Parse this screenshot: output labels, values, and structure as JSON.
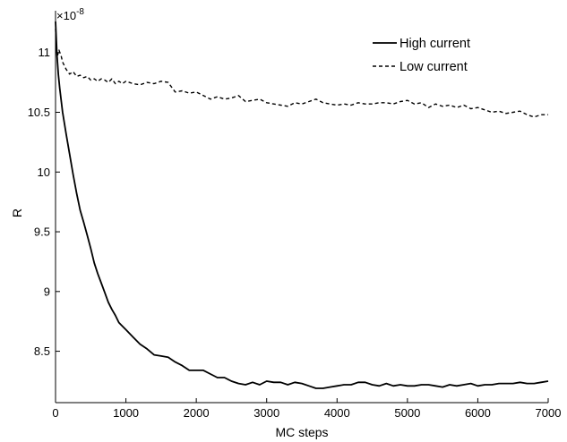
{
  "chart_data": {
    "type": "line",
    "title": "",
    "xlabel": "MC steps",
    "ylabel": "R",
    "y_multiplier": "×10",
    "y_exponent": "-8",
    "xlim": [
      0,
      7000
    ],
    "ylim": [
      8.07,
      11.35
    ],
    "x_ticks": [
      0,
      1000,
      2000,
      3000,
      4000,
      5000,
      6000,
      7000
    ],
    "y_ticks": [
      8.5,
      9,
      9.5,
      10,
      10.5,
      11
    ],
    "y_tick_labels": [
      "8.5",
      "9",
      "9.5",
      "10",
      "10.5",
      "11"
    ],
    "grid": false,
    "legend_position": "top-right",
    "series": [
      {
        "name": "High current",
        "line_style": "solid",
        "color": "#000000",
        "x": [
          0,
          20,
          40,
          60,
          80,
          100,
          150,
          200,
          250,
          300,
          350,
          400,
          450,
          500,
          550,
          600,
          650,
          700,
          750,
          800,
          850,
          900,
          950,
          1000,
          1100,
          1200,
          1300,
          1400,
          1500,
          1600,
          1700,
          1800,
          1900,
          2000,
          2100,
          2200,
          2300,
          2400,
          2500,
          2600,
          2700,
          2800,
          2900,
          3000,
          3100,
          3200,
          3300,
          3400,
          3500,
          3600,
          3700,
          3800,
          3900,
          4000,
          4100,
          4200,
          4300,
          4400,
          4500,
          4600,
          4700,
          4800,
          4900,
          5000,
          5100,
          5200,
          5300,
          5400,
          5500,
          5600,
          5700,
          5800,
          5900,
          6000,
          6100,
          6200,
          6300,
          6400,
          6500,
          6600,
          6700,
          6800,
          6900,
          7000
        ],
        "y": [
          11.26,
          10.98,
          10.82,
          10.7,
          10.6,
          10.5,
          10.32,
          10.15,
          9.98,
          9.82,
          9.68,
          9.58,
          9.47,
          9.36,
          9.24,
          9.15,
          9.07,
          8.99,
          8.91,
          8.85,
          8.8,
          8.74,
          8.71,
          8.68,
          8.62,
          8.56,
          8.52,
          8.47,
          8.46,
          8.45,
          8.41,
          8.38,
          8.34,
          8.34,
          8.34,
          8.31,
          8.28,
          8.28,
          8.25,
          8.23,
          8.22,
          8.24,
          8.22,
          8.25,
          8.24,
          8.24,
          8.22,
          8.24,
          8.23,
          8.21,
          8.19,
          8.19,
          8.2,
          8.21,
          8.22,
          8.22,
          8.24,
          8.24,
          8.22,
          8.21,
          8.23,
          8.21,
          8.22,
          8.21,
          8.21,
          8.22,
          8.22,
          8.21,
          8.2,
          8.22,
          8.21,
          8.22,
          8.23,
          8.21,
          8.22,
          8.22,
          8.23,
          8.23,
          8.23,
          8.24,
          8.23,
          8.23,
          8.24,
          8.25
        ]
      },
      {
        "name": "Low current",
        "line_style": "dashed",
        "color": "#000000",
        "x": [
          0,
          10,
          30,
          50,
          80,
          100,
          150,
          200,
          250,
          300,
          350,
          400,
          450,
          500,
          550,
          600,
          650,
          700,
          750,
          800,
          850,
          900,
          950,
          1000,
          1100,
          1200,
          1300,
          1400,
          1500,
          1600,
          1700,
          1800,
          1900,
          2000,
          2100,
          2200,
          2300,
          2400,
          2500,
          2600,
          2700,
          2800,
          2900,
          3000,
          3100,
          3200,
          3300,
          3400,
          3500,
          3600,
          3700,
          3800,
          3900,
          4000,
          4100,
          4200,
          4300,
          4400,
          4500,
          4600,
          4700,
          4800,
          4900,
          5000,
          5100,
          5200,
          5300,
          5400,
          5500,
          5600,
          5700,
          5800,
          5900,
          6000,
          6100,
          6200,
          6300,
          6400,
          6500,
          6600,
          6700,
          6800,
          6900,
          7000
        ],
        "y": [
          11.2,
          11.04,
          10.98,
          11.02,
          10.97,
          10.92,
          10.86,
          10.82,
          10.84,
          10.8,
          10.81,
          10.79,
          10.8,
          10.77,
          10.78,
          10.76,
          10.78,
          10.77,
          10.75,
          10.78,
          10.74,
          10.76,
          10.74,
          10.76,
          10.74,
          10.73,
          10.75,
          10.74,
          10.76,
          10.75,
          10.67,
          10.68,
          10.66,
          10.67,
          10.64,
          10.61,
          10.63,
          10.61,
          10.62,
          10.64,
          10.59,
          10.6,
          10.61,
          10.58,
          10.57,
          10.56,
          10.55,
          10.58,
          10.57,
          10.59,
          10.61,
          10.58,
          10.57,
          10.56,
          10.57,
          10.56,
          10.58,
          10.57,
          10.57,
          10.58,
          10.58,
          10.57,
          10.59,
          10.6,
          10.57,
          10.58,
          10.54,
          10.57,
          10.55,
          10.56,
          10.54,
          10.56,
          10.53,
          10.54,
          10.52,
          10.5,
          10.51,
          10.49,
          10.5,
          10.51,
          10.48,
          10.46,
          10.48,
          10.48
        ]
      }
    ]
  }
}
